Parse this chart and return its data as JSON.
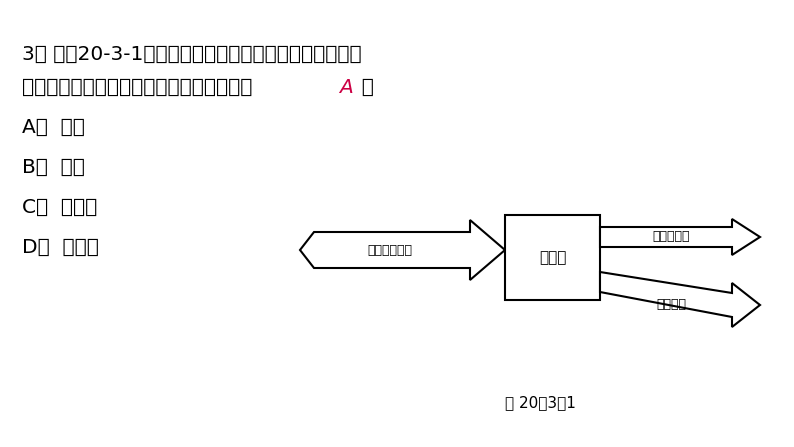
{
  "bg_color": "#ffffff",
  "text_color": "#000000",
  "answer_color": "#cc0044",
  "title_line1": "3． 如图20-3-1是电风扇工作时的能量流向图（算头粗细",
  "title_line2_before": "不代表能量的多少），括号的能量应该是（  ",
  "title_line2_answer": "A",
  "title_line2_after": "  ）",
  "options": [
    "A．  电能",
    "B．  内能",
    "C．  化学能",
    "D．  机械能"
  ],
  "fig_label": "图 20－3－1",
  "box_label": "电风扇",
  "input_label": "（　　）输入",
  "output1_label": "机械能输出",
  "output2_label": "内能输出"
}
